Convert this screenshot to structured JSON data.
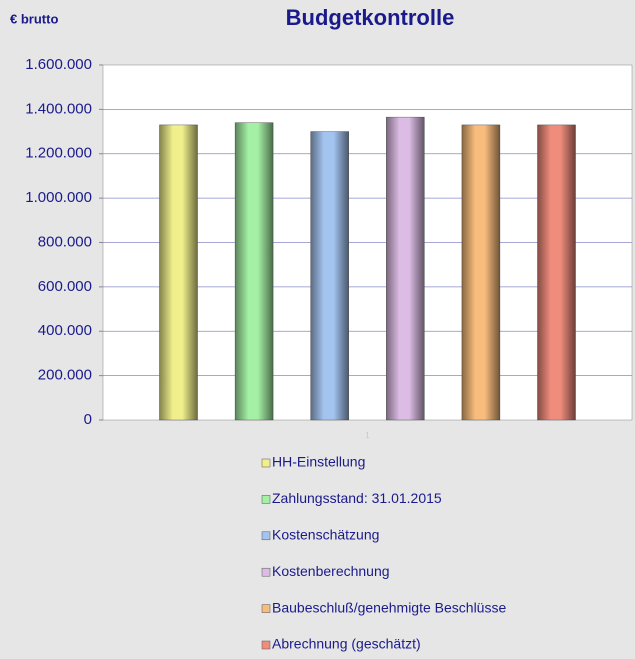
{
  "chart_data": {
    "type": "bar",
    "title": "Budgetkontrolle",
    "y_label": "€ brutto",
    "categories": [
      "1"
    ],
    "series": [
      {
        "name": "HH-Einstellung",
        "color": "#f0ef8c",
        "values": [
          1330000
        ]
      },
      {
        "name": "Zahlungsstand: 31.01.2015",
        "color": "#a4f0a4",
        "values": [
          1340000
        ]
      },
      {
        "name": "Kostenschätzung",
        "color": "#a4c4f0",
        "values": [
          1300000
        ]
      },
      {
        "name": "Kostenberechnung",
        "color": "#dcbce4",
        "values": [
          1365000
        ]
      },
      {
        "name": "Baubeschluß/genehmigte Beschlüsse",
        "color": "#f8bc7c",
        "values": [
          1330000
        ]
      },
      {
        "name": "Abrechnung (geschätzt)",
        "color": "#f08c7c",
        "values": [
          1330000
        ]
      }
    ],
    "ylim": [
      0,
      1600000
    ],
    "yticks": [
      0,
      {
        "value": 200000,
        "label": "200.000"
      },
      {
        "value": 400000,
        "label": "400.000"
      },
      {
        "value": 600000,
        "label": "600.000"
      },
      {
        "value": 800000,
        "label": "800.000"
      },
      {
        "value": 1000000,
        "label": "1.000.000"
      },
      {
        "value": 1200000,
        "label": "1.200.000"
      },
      {
        "value": 1400000,
        "label": "1.400.000"
      },
      {
        "value": 1600000,
        "label": "1.600.000"
      }
    ],
    "grid": true,
    "legend": "bottom"
  }
}
